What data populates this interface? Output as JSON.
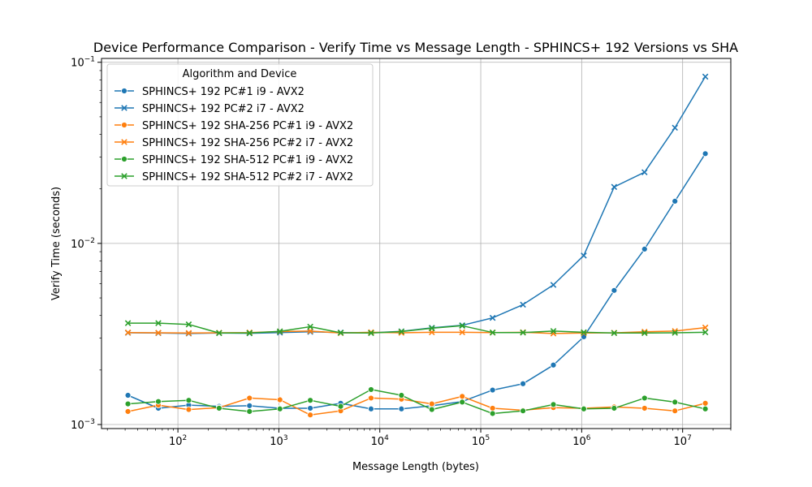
{
  "chart_data": {
    "type": "line",
    "title": "Device Performance Comparison - Verify Time vs Message Length - SPHINCS+ 192 Versions vs SHA",
    "xlabel": "Message Length (bytes)",
    "ylabel": "Verify Time (seconds)",
    "x_scale": "log",
    "y_scale": "log",
    "xlim": [
      17.5,
      30000000
    ],
    "ylim": [
      0.00095,
      0.105
    ],
    "grid": true,
    "x_ticks": [
      {
        "value": 100,
        "base": "10",
        "exp": "2"
      },
      {
        "value": 1000,
        "base": "10",
        "exp": "3"
      },
      {
        "value": 10000,
        "base": "10",
        "exp": "4"
      },
      {
        "value": 100000,
        "base": "10",
        "exp": "5"
      },
      {
        "value": 1000000,
        "base": "10",
        "exp": "6"
      },
      {
        "value": 10000000,
        "base": "10",
        "exp": "7"
      }
    ],
    "y_ticks": [
      {
        "value": 0.001,
        "base": "10",
        "exp": "−3"
      },
      {
        "value": 0.01,
        "base": "10",
        "exp": "−2"
      },
      {
        "value": 0.1,
        "base": "10",
        "exp": "−1"
      }
    ],
    "legend": {
      "title": "Algorithm and Device",
      "placement": "upper-left"
    },
    "x": [
      32,
      64,
      128,
      256,
      512,
      1024,
      2048,
      4096,
      8192,
      16384,
      32768,
      65536,
      131072,
      262144,
      524288,
      1048576,
      2097152,
      4194304,
      8388608,
      16777216
    ],
    "series": [
      {
        "name": "SPHINCS+ 192 PC#1 i9 - AVX2",
        "color": "#1f77b4",
        "marker": "circle",
        "values": [
          0.00145,
          0.00123,
          0.00128,
          0.00126,
          0.00127,
          0.00123,
          0.00123,
          0.00131,
          0.00122,
          0.00122,
          0.00127,
          0.00134,
          0.00155,
          0.00168,
          0.00213,
          0.00305,
          0.0055,
          0.0093,
          0.0171,
          0.0313
        ]
      },
      {
        "name": "SPHINCS+ 192 PC#2 i7 - AVX2",
        "color": "#1f77b4",
        "marker": "x",
        "values": [
          0.00321,
          0.0032,
          0.00318,
          0.0032,
          0.00319,
          0.00322,
          0.00325,
          0.00322,
          0.00321,
          0.00327,
          0.00342,
          0.00353,
          0.00388,
          0.00459,
          0.0059,
          0.00857,
          0.0205,
          0.0247,
          0.0435,
          0.0833
        ]
      },
      {
        "name": "SPHINCS+ 192 SHA-256 PC#1 i9 - AVX2",
        "color": "#ff7f0e",
        "marker": "circle",
        "values": [
          0.00118,
          0.00128,
          0.00121,
          0.00124,
          0.0014,
          0.00137,
          0.00113,
          0.00119,
          0.0014,
          0.00138,
          0.0013,
          0.00143,
          0.00123,
          0.0012,
          0.00124,
          0.00123,
          0.00125,
          0.00123,
          0.00119,
          0.00131
        ]
      },
      {
        "name": "SPHINCS+ 192 SHA-256 PC#2 i7 - AVX2",
        "color": "#ff7f0e",
        "marker": "x",
        "values": [
          0.00322,
          0.00321,
          0.0032,
          0.00321,
          0.00322,
          0.00326,
          0.00328,
          0.0032,
          0.00323,
          0.00321,
          0.00323,
          0.00323,
          0.00322,
          0.00323,
          0.00318,
          0.0032,
          0.00321,
          0.00325,
          0.00328,
          0.00343
        ]
      },
      {
        "name": "SPHINCS+ 192 SHA-512 PC#1 i9 - AVX2",
        "color": "#2ca02c",
        "marker": "circle",
        "values": [
          0.0013,
          0.00134,
          0.00136,
          0.00123,
          0.00118,
          0.00122,
          0.00136,
          0.00126,
          0.00156,
          0.00145,
          0.00121,
          0.00133,
          0.00115,
          0.00119,
          0.00129,
          0.00122,
          0.00123,
          0.0014,
          0.00133,
          0.00122
        ]
      },
      {
        "name": "SPHINCS+ 192 SHA-512 PC#2 i7 - AVX2",
        "color": "#2ca02c",
        "marker": "x",
        "values": [
          0.00363,
          0.00363,
          0.00357,
          0.0032,
          0.0032,
          0.00327,
          0.00347,
          0.00321,
          0.0032,
          0.00326,
          0.0034,
          0.00351,
          0.00322,
          0.00322,
          0.00328,
          0.00323,
          0.0032,
          0.0032,
          0.00321,
          0.00323
        ]
      }
    ]
  }
}
